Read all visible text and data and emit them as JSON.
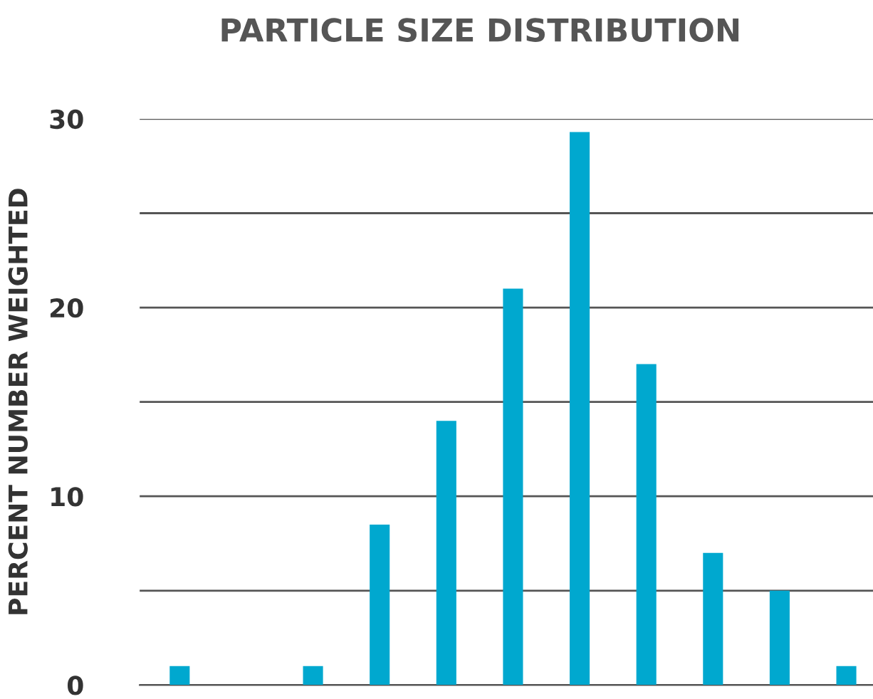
{
  "chart_data": {
    "type": "bar",
    "title": "PARTICLE SIZE DISTRIBUTION",
    "ylabel": "PERCENT NUMBER WEIGHTED",
    "categories": [
      null,
      null,
      null,
      null,
      null,
      null,
      null,
      null,
      null,
      null,
      null
    ],
    "values": [
      1,
      null,
      1,
      8.5,
      14,
      21,
      29.3,
      17,
      7,
      5,
      1
    ],
    "color": "#00a8cf",
    "ylim": [
      0,
      30
    ],
    "yticks": [
      0,
      {
        "value": 5,
        "label": null
      },
      10,
      {
        "value": 15,
        "label": null
      },
      20,
      {
        "value": 25,
        "label": null
      },
      30
    ],
    "grid": "y",
    "tick_labels": "y"
  }
}
